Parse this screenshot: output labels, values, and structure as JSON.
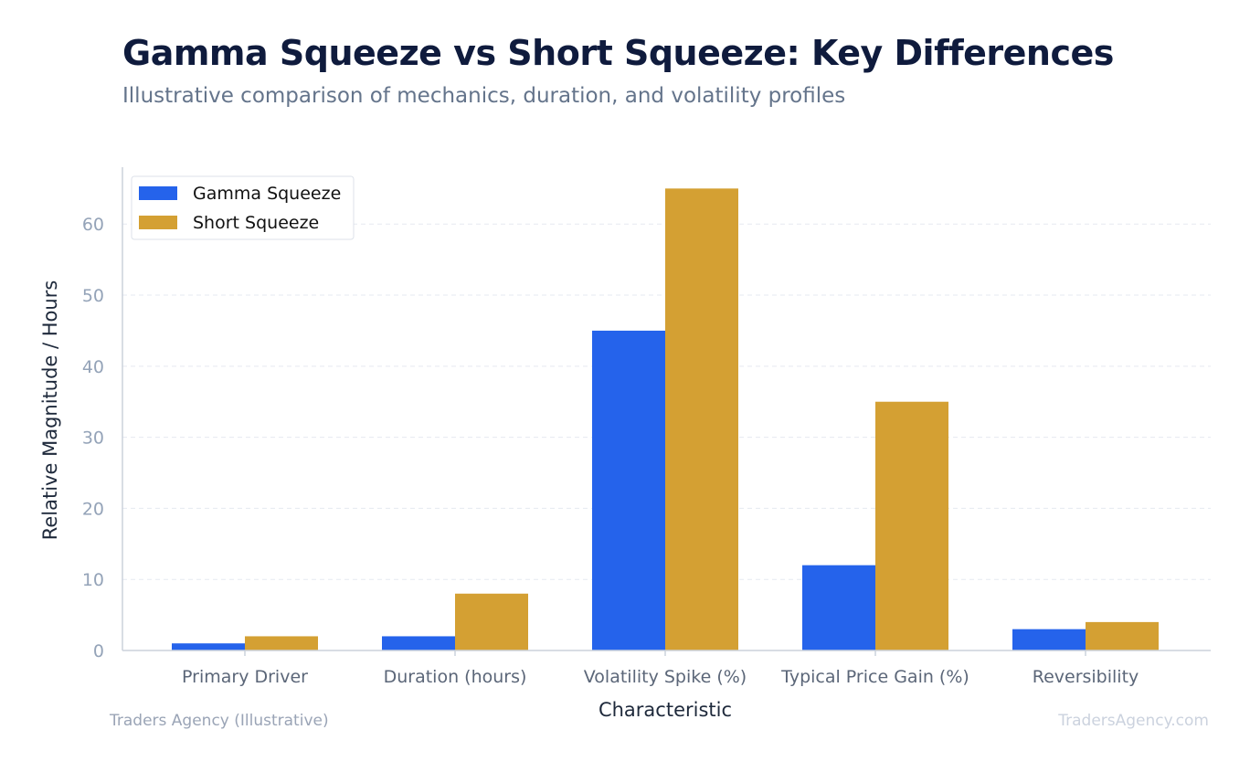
{
  "header": {
    "title": "Gamma Squeeze vs Short Squeeze: Key Differences",
    "subtitle": "Illustrative comparison of mechanics, duration, and volatility profiles"
  },
  "footer": {
    "source": "Traders Agency (Illustrative)",
    "watermark": "TradersAgency.com"
  },
  "chart_data": {
    "type": "bar",
    "title": "Gamma Squeeze vs Short Squeeze: Key Differences",
    "subtitle": "Illustrative comparison of mechanics, duration, and volatility profiles",
    "xlabel": "Characteristic",
    "ylabel": "Relative Magnitude / Hours",
    "categories": [
      "Primary Driver",
      "Duration (hours)",
      "Volatility Spike (%)",
      "Typical Price Gain (%)",
      "Reversibility"
    ],
    "series": [
      {
        "name": "Gamma Squeeze",
        "values": [
          1,
          2,
          45,
          12,
          3
        ],
        "color": "#2563eb"
      },
      {
        "name": "Short Squeeze",
        "values": [
          2,
          8,
          65,
          35,
          4
        ],
        "color": "#d4a033"
      }
    ],
    "ylim": [
      0,
      68
    ],
    "yticks": [
      0,
      10,
      20,
      30,
      40,
      50,
      60
    ],
    "grid": true,
    "legend_position": "top-left"
  }
}
